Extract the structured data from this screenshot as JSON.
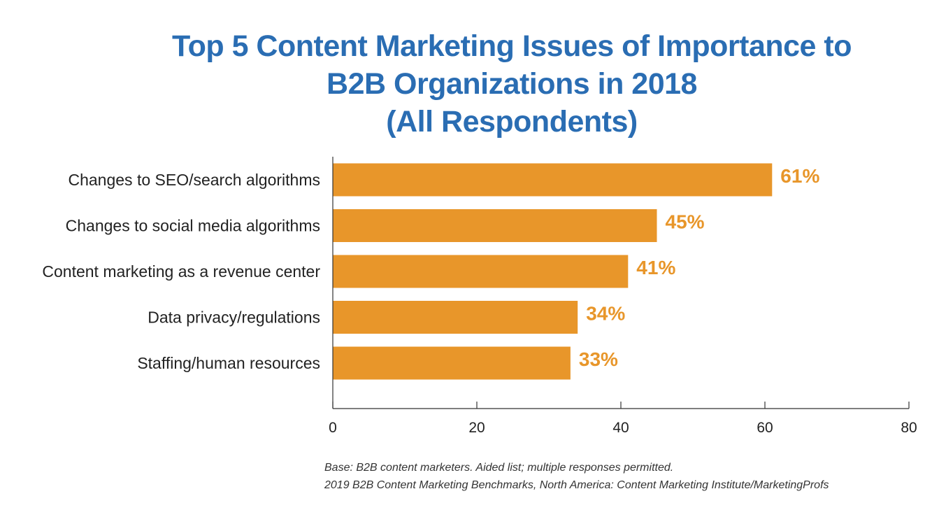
{
  "chart_data": {
    "type": "bar",
    "orientation": "horizontal",
    "title_lines": [
      "Top 5 Content Marketing Issues of Importance to",
      "B2B Organizations in 2018",
      "(All Respondents)"
    ],
    "categories": [
      "Changes to SEO/search algorithms",
      "Changes to social media algorithms",
      "Content marketing as a revenue center",
      "Data privacy/regulations",
      "Staffing/human resources"
    ],
    "values": [
      61,
      45,
      41,
      34,
      33
    ],
    "data_labels": [
      "61%",
      "45%",
      "41%",
      "34%",
      "33%"
    ],
    "xlim": [
      0,
      80
    ],
    "x_ticks": [
      0,
      20,
      40,
      60,
      80
    ],
    "x_tick_labels": [
      "0",
      "20",
      "40",
      "60",
      "80"
    ],
    "grid": false,
    "bar_color": "#e8962a",
    "title_color": "#2a6db3",
    "notes": [
      "Base: B2B content marketers. Aided list; multiple responses permitted.",
      "2019 B2B Content Marketing Benchmarks, North America: Content Marketing Institute/MarketingProfs"
    ]
  }
}
